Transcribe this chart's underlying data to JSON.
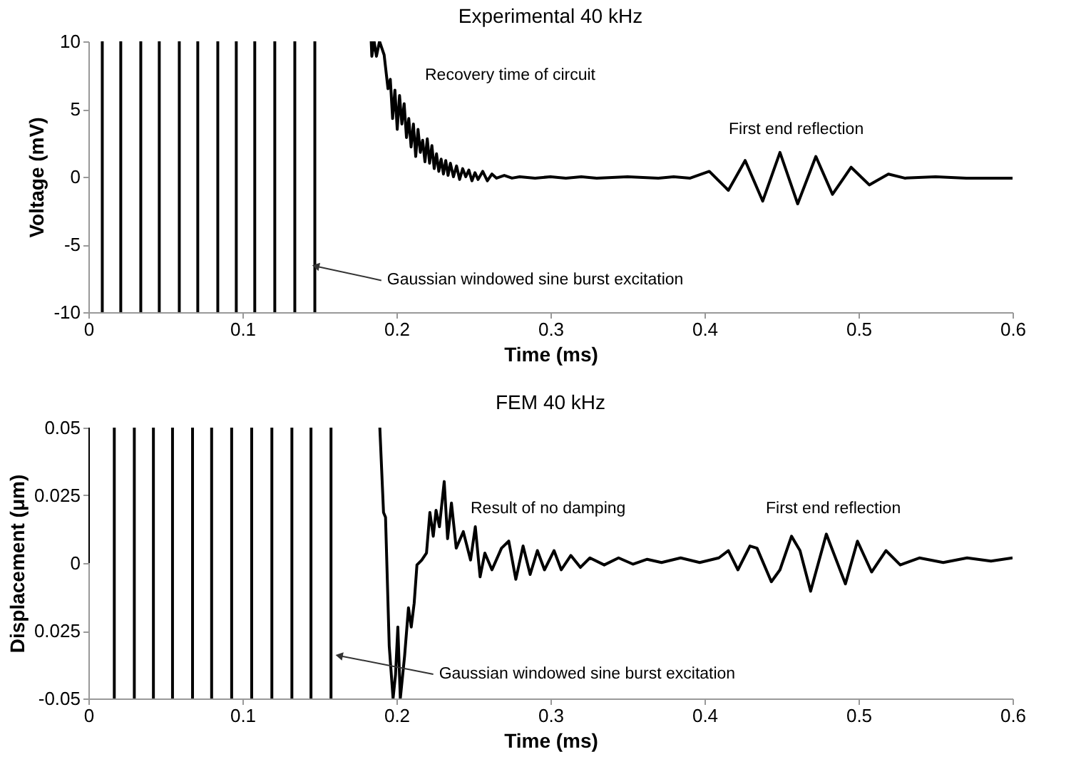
{
  "chart_data": [
    {
      "type": "line",
      "title": "Experimental 40 kHz",
      "xlabel": "Time (ms)",
      "ylabel": "Voltage (mV)",
      "xlim": [
        0,
        0.6
      ],
      "ylim": [
        -10,
        10
      ],
      "xticks": [
        0,
        0.1,
        0.2,
        0.3,
        0.4,
        0.5,
        0.6
      ],
      "yticks": [
        -10,
        -5,
        0,
        5,
        10
      ],
      "series": [
        {
          "color": "#000000",
          "x": [
            0.009,
            0.009
          ],
          "values": [
            -10,
            10
          ]
        },
        {
          "color": "#000000",
          "x": [
            0.021,
            0.021
          ],
          "values": [
            -10,
            10
          ]
        },
        {
          "color": "#000000",
          "x": [
            0.034,
            0.034
          ],
          "values": [
            -10,
            10
          ]
        },
        {
          "color": "#000000",
          "x": [
            0.046,
            0.046
          ],
          "values": [
            -10,
            10
          ]
        },
        {
          "color": "#000000",
          "x": [
            0.059,
            0.059
          ],
          "values": [
            -10,
            10
          ]
        },
        {
          "color": "#000000",
          "x": [
            0.071,
            0.071
          ],
          "values": [
            -10,
            10
          ]
        },
        {
          "color": "#000000",
          "x": [
            0.084,
            0.084
          ],
          "values": [
            -10,
            10
          ]
        },
        {
          "color": "#000000",
          "x": [
            0.096,
            0.096
          ],
          "values": [
            -10,
            10
          ]
        },
        {
          "color": "#000000",
          "x": [
            0.108,
            0.108
          ],
          "values": [
            -10,
            10
          ]
        },
        {
          "color": "#000000",
          "x": [
            0.121,
            0.121
          ],
          "values": [
            -10,
            10
          ]
        },
        {
          "color": "#000000",
          "x": [
            0.134,
            0.134
          ],
          "values": [
            -10,
            10
          ]
        },
        {
          "color": "#000000",
          "x": [
            0.147,
            0.147
          ],
          "values": [
            -10,
            10
          ]
        },
        {
          "color": "#000000",
          "x": [
            0.1836,
            0.184,
            0.1855,
            0.187,
            0.189,
            0.192,
            0.1945,
            0.196,
            0.1975,
            0.199,
            0.2005,
            0.202,
            0.2035,
            0.205,
            0.2065,
            0.208,
            0.2095,
            0.211,
            0.2125,
            0.214,
            0.2155,
            0.217,
            0.2185,
            0.22,
            0.2215,
            0.223,
            0.2245,
            0.226,
            0.2275,
            0.229,
            0.2305,
            0.232,
            0.2335,
            0.235,
            0.237,
            0.239,
            0.241,
            0.243,
            0.245,
            0.247,
            0.249,
            0.251,
            0.253,
            0.256,
            0.259,
            0.262,
            0.265,
            0.27,
            0.275,
            0.28,
            0.29,
            0.3,
            0.31,
            0.32,
            0.33,
            0.35,
            0.37,
            0.38,
            0.3907,
            0.4031,
            0.4155,
            0.4264,
            0.4378,
            0.449,
            0.4605,
            0.4723,
            0.4831,
            0.4952,
            0.507,
            0.5194,
            0.53,
            0.55,
            0.57,
            0.6
          ],
          "values": [
            10,
            8.9,
            10,
            8.9,
            10,
            9.0,
            6.5,
            7.2,
            4.3,
            6.4,
            3.5,
            6.0,
            3.9,
            5.4,
            2.9,
            4.3,
            2.2,
            3.9,
            1.5,
            3.5,
            1.8,
            2.7,
            1.1,
            2.8,
            1.0,
            2.3,
            0.6,
            1.7,
            0.4,
            1.3,
            0.2,
            1.2,
            0.1,
            1.0,
            0.0,
            0.8,
            -0.2,
            0.6,
            0.0,
            0.5,
            -0.3,
            0.3,
            -0.2,
            0.4,
            -0.3,
            0.2,
            -0.1,
            0.1,
            -0.1,
            0.0,
            -0.1,
            0.0,
            -0.1,
            0.0,
            -0.1,
            0.0,
            -0.1,
            0.0,
            -0.1,
            0.4,
            -1.0,
            1.2,
            -1.8,
            1.8,
            -2.0,
            1.5,
            -1.3,
            0.7,
            -0.6,
            0.2,
            -0.1,
            0.0,
            -0.1,
            -0.1
          ]
        }
      ],
      "annotations": [
        "Recovery time of circuit",
        "First end reflection",
        {
          "text": "Gaussian windowed sine burst excitation",
          "x": 0.1476,
          "y": -6.6
        }
      ]
    },
    {
      "type": "line",
      "title": "FEM 40 kHz",
      "xlabel": "Time (ms)",
      "ylabel": "Displacement (μm)",
      "xlim": [
        0,
        0.6
      ],
      "ylim": [
        -0.05,
        0.05
      ],
      "xticks": [
        0,
        0.1,
        0.2,
        0.3,
        0.4,
        0.5,
        0.6
      ],
      "yticks": [
        -0.05,
        {
          "value": -0.025,
          "label": "0.025"
        },
        0,
        0.025,
        0.05
      ],
      "series": [
        {
          "color": "#000000",
          "x": [
            0,
            0
          ],
          "values": [
            0,
            0.05
          ]
        },
        {
          "color": "#000000",
          "x": [
            0.0168,
            0.0168
          ],
          "values": [
            -0.05,
            0.05
          ]
        },
        {
          "color": "#000000",
          "x": [
            0.0298,
            0.0298
          ],
          "values": [
            -0.05,
            0.05
          ]
        },
        {
          "color": "#000000",
          "x": [
            0.0422,
            0.0422
          ],
          "values": [
            -0.05,
            0.05
          ]
        },
        {
          "color": "#000000",
          "x": [
            0.0546,
            0.0546
          ],
          "values": [
            -0.05,
            0.05
          ]
        },
        {
          "color": "#000000",
          "x": [
            0.0676,
            0.0676
          ],
          "values": [
            -0.05,
            0.05
          ]
        },
        {
          "color": "#000000",
          "x": [
            0.08,
            0.08
          ],
          "values": [
            -0.05,
            0.05
          ]
        },
        {
          "color": "#000000",
          "x": [
            0.093,
            0.093
          ],
          "values": [
            -0.05,
            0.05
          ]
        },
        {
          "color": "#000000",
          "x": [
            0.106,
            0.106
          ],
          "values": [
            -0.05,
            0.05
          ]
        },
        {
          "color": "#000000",
          "x": [
            0.1191,
            0.1191
          ],
          "values": [
            -0.05,
            0.05
          ]
        },
        {
          "color": "#000000",
          "x": [
            0.1321,
            0.1321
          ],
          "values": [
            -0.05,
            0.05
          ]
        },
        {
          "color": "#000000",
          "x": [
            0.1445,
            0.1445
          ],
          "values": [
            -0.05,
            0.05
          ]
        },
        {
          "color": "#000000",
          "x": [
            0.1575,
            0.1575
          ],
          "values": [
            -0.05,
            0.05
          ]
        },
        {
          "color": "#000000",
          "x": [
            0.1892,
            0.1916,
            0.1929,
            0.1953,
            0.1978,
            0.1994,
            0.2009,
            0.2025,
            0.2053,
            0.2078,
            0.2096,
            0.2115,
            0.2133,
            0.2164,
            0.2195,
            0.2217,
            0.2239,
            0.2257,
            0.2279,
            0.231,
            0.2332,
            0.2357,
            0.2388,
            0.2434,
            0.2481,
            0.2512,
            0.2543,
            0.2574,
            0.262,
            0.2682,
            0.2729,
            0.2775,
            0.2822,
            0.2868,
            0.2915,
            0.2961,
            0.3023,
            0.307,
            0.3132,
            0.3194,
            0.3256,
            0.3349,
            0.3442,
            0.3535,
            0.3628,
            0.3721,
            0.3845,
            0.3969,
            0.4093,
            0.4155,
            0.4217,
            0.4295,
            0.4341,
            0.4434,
            0.449,
            0.4565,
            0.462,
            0.4689,
            0.4791,
            0.4915,
            0.4993,
            0.5085,
            0.5178,
            0.5271,
            0.5395,
            0.555,
            0.5705,
            0.586,
            0.6
          ],
          "values": [
            0.05,
            0.0187,
            0.0169,
            -0.0306,
            -0.05,
            -0.0412,
            -0.0236,
            -0.05,
            -0.0342,
            -0.0165,
            -0.0236,
            -0.0148,
            -0.0007,
            0.0011,
            0.0037,
            0.0187,
            0.0099,
            0.0195,
            0.0134,
            0.0301,
            0.009,
            0.0222,
            0.0055,
            0.0116,
            0.0011,
            0.0134,
            -0.0051,
            0.0037,
            -0.0025,
            0.0055,
            0.0081,
            -0.006,
            0.0063,
            -0.0042,
            0.0046,
            -0.0025,
            0.0046,
            -0.0025,
            0.0028,
            -0.0016,
            0.0019,
            -0.0007,
            0.0019,
            -0.0004,
            0.0014,
            0.0002,
            0.0019,
            0.0002,
            0.0019,
            0.0046,
            -0.0025,
            0.0063,
            0.0055,
            -0.0069,
            -0.0025,
            0.0099,
            0.0046,
            -0.0104,
            0.0107,
            -0.0077,
            0.0081,
            -0.0033,
            0.0046,
            -0.0007,
            0.0019,
            0.0002,
            0.0019,
            0.0007,
            0.0019
          ]
        }
      ],
      "annotations": [
        "Result of no damping",
        "First end reflection",
        {
          "text": "Gaussian windowed sine burst excitation",
          "x": 0.1628,
          "y": -0.0342
        }
      ]
    }
  ]
}
